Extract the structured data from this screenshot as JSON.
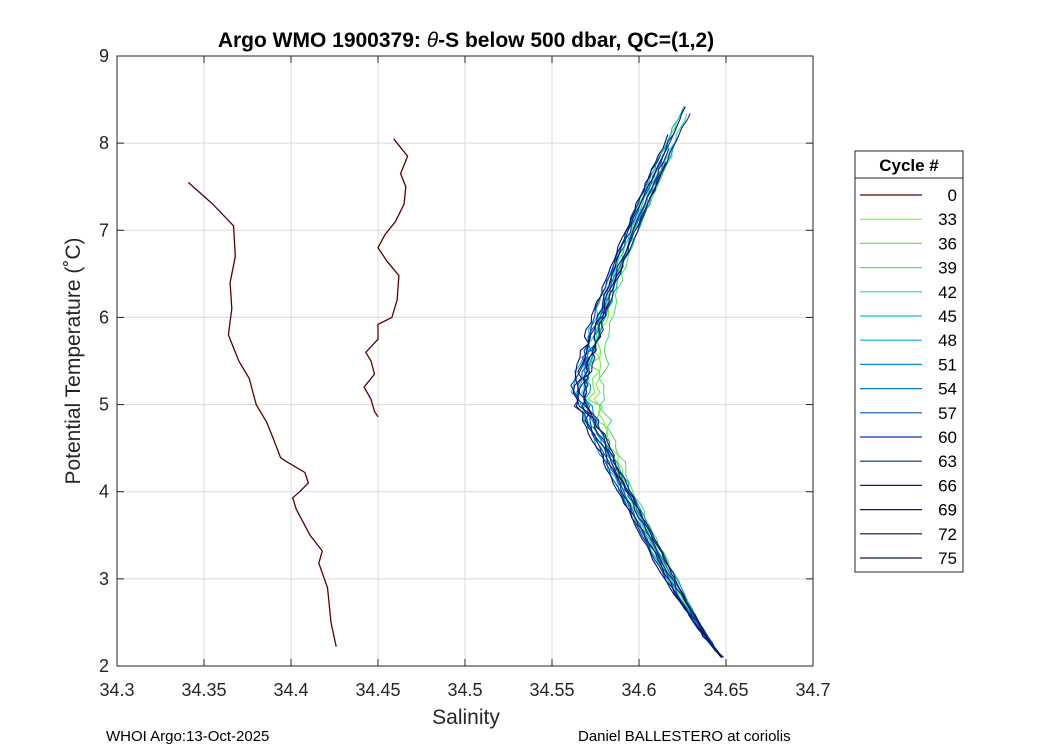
{
  "chart_data": {
    "type": "line",
    "title_prefix": "Argo WMO 1900379: ",
    "title_theta": "θ",
    "title_suffix": "-S below 500 dbar,  QC=(1,2)",
    "xlabel": "Salinity",
    "ylabel": "Potential Temperature (˚C)",
    "xlim": [
      34.3,
      34.7
    ],
    "ylim": [
      2,
      9
    ],
    "xticks": [
      "34.3",
      "34.35",
      "34.4",
      "34.45",
      "34.5",
      "34.55",
      "34.6",
      "34.65",
      "34.7"
    ],
    "yticks": [
      "2",
      "3",
      "4",
      "5",
      "6",
      "7",
      "8",
      "9"
    ],
    "grid": true,
    "legend_title": "Cycle #",
    "legend_position": "outside-right",
    "legend": [
      "0",
      "33",
      "36",
      "39",
      "42",
      "45",
      "48",
      "51",
      "54",
      "57",
      "60",
      "63",
      "66",
      "69",
      "72",
      "75"
    ],
    "legend_colors": [
      "#5a0000",
      "#7df040",
      "#6ce650",
      "#55e070",
      "#2fd6a0",
      "#18c8c8",
      "#10b0d8",
      "#1090d0",
      "#0878c8",
      "#0858c0",
      "#0838b0",
      "#0a2898",
      "#0a2088",
      "#081a70",
      "#061458",
      "#0c1c4a"
    ],
    "cycle0_a": [
      [
        34.426,
        2.22
      ],
      [
        34.423,
        2.5
      ],
      [
        34.421,
        2.9
      ],
      [
        34.416,
        3.18
      ],
      [
        34.418,
        3.32
      ],
      [
        34.411,
        3.5
      ],
      [
        34.403,
        3.8
      ],
      [
        34.401,
        3.93
      ],
      [
        34.405,
        4.0
      ],
      [
        34.41,
        4.1
      ],
      [
        34.408,
        4.22
      ],
      [
        34.397,
        4.35
      ],
      [
        34.394,
        4.39
      ],
      [
        34.39,
        4.6
      ],
      [
        34.386,
        4.8
      ],
      [
        34.38,
        5.0
      ],
      [
        34.376,
        5.3
      ],
      [
        34.37,
        5.5
      ],
      [
        34.364,
        5.8
      ],
      [
        34.366,
        6.1
      ],
      [
        34.365,
        6.4
      ],
      [
        34.368,
        6.7
      ],
      [
        34.367,
        7.05
      ],
      [
        34.355,
        7.3
      ],
      [
        34.341,
        7.55
      ]
    ],
    "cycle0_b": [
      [
        34.45,
        4.86
      ],
      [
        34.448,
        4.92
      ],
      [
        34.446,
        5.06
      ],
      [
        34.442,
        5.2
      ],
      [
        34.448,
        5.35
      ],
      [
        34.446,
        5.5
      ],
      [
        34.443,
        5.6
      ],
      [
        34.45,
        5.75
      ],
      [
        34.45,
        5.92
      ],
      [
        34.458,
        6.0
      ],
      [
        34.461,
        6.2
      ],
      [
        34.462,
        6.48
      ],
      [
        34.455,
        6.65
      ],
      [
        34.45,
        6.8
      ],
      [
        34.454,
        6.95
      ],
      [
        34.46,
        7.1
      ],
      [
        34.465,
        7.3
      ],
      [
        34.466,
        7.5
      ],
      [
        34.463,
        7.65
      ],
      [
        34.467,
        7.85
      ],
      [
        34.459,
        8.05
      ]
    ]
  },
  "footer": {
    "left": "WHOI Argo:13-Oct-2025",
    "right": "Daniel BALLESTERO at coriolis"
  }
}
